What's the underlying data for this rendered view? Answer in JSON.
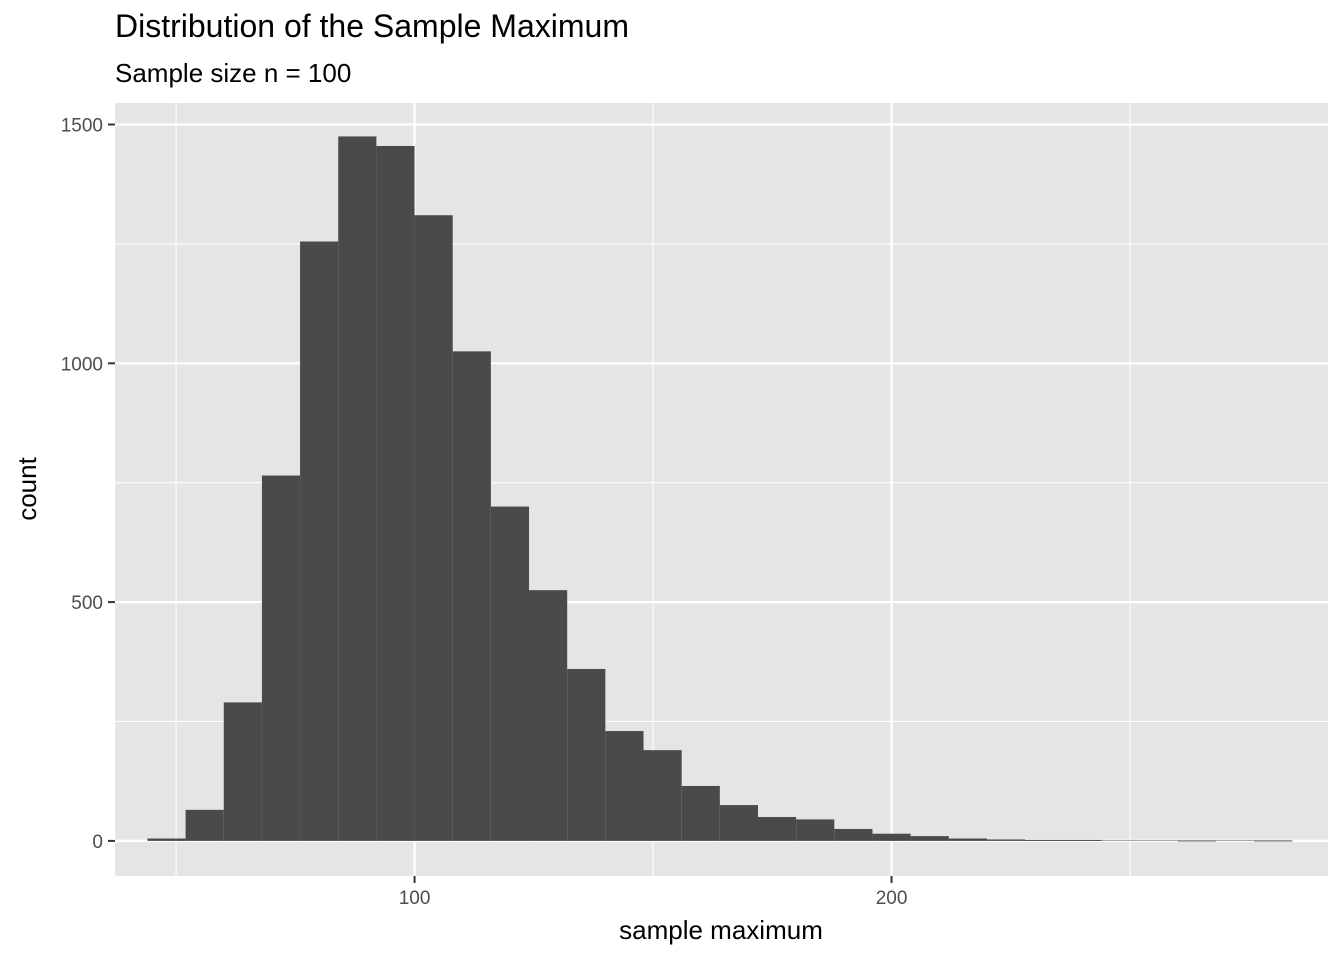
{
  "chart_data": {
    "type": "bar",
    "title": "Distribution of the Sample Maximum",
    "subtitle": "Sample size n = 100",
    "xlabel": "sample maximum",
    "ylabel": "count",
    "bin_width": 8,
    "bins_x_start": [
      44,
      52,
      60,
      68,
      76,
      84,
      92,
      100,
      108,
      116,
      124,
      132,
      140,
      148,
      156,
      164,
      172,
      180,
      188,
      196,
      204,
      212,
      220,
      228,
      236,
      244,
      252,
      260,
      268,
      276
    ],
    "values": [
      5,
      65,
      290,
      765,
      1255,
      1475,
      1455,
      1310,
      1025,
      700,
      525,
      360,
      230,
      190,
      115,
      75,
      50,
      45,
      25,
      15,
      10,
      5,
      3,
      2,
      2,
      0,
      0,
      1,
      0,
      1
    ],
    "xlim": [
      37.2,
      291.5
    ],
    "ylim": [
      -73.5,
      1545
    ],
    "x_major_ticks": [
      100,
      200
    ],
    "x_minor_gridlines": [
      50,
      150,
      250
    ],
    "y_major_ticks": [
      0,
      500,
      1000,
      1500
    ],
    "y_minor_gridlines": [
      250,
      750,
      1250
    ],
    "grid": true,
    "colors": {
      "panel": "#e5e5e5",
      "bar": "#4a4a4a",
      "grid": "#ffffff",
      "tick_text": "#4d4d4d"
    }
  }
}
